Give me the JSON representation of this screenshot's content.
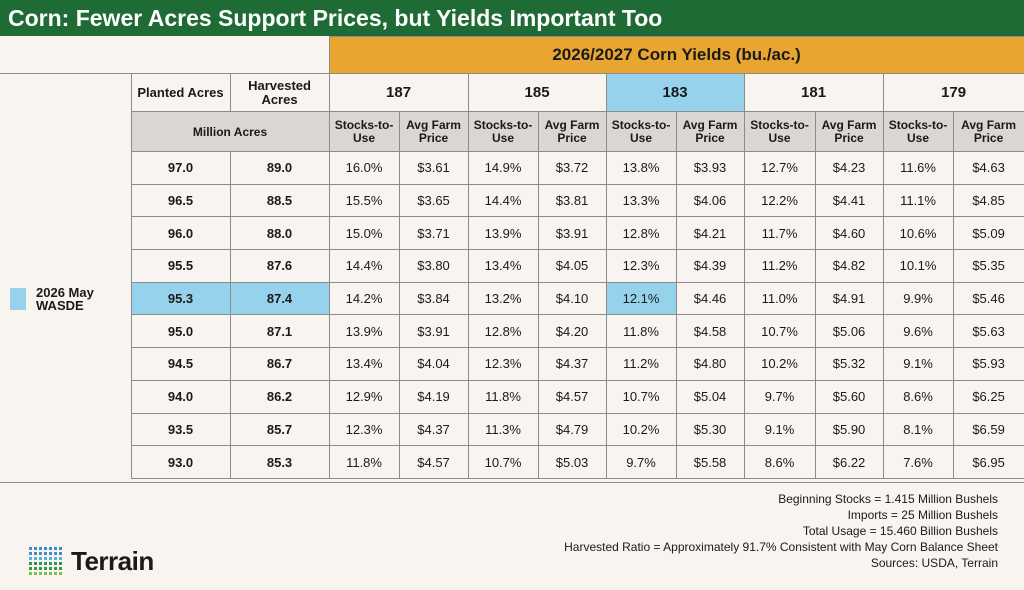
{
  "title": "Corn: Fewer Acres Support Prices, but Yields Important Too",
  "chart_data": {
    "type": "table",
    "title": "Corn: Fewer Acres Support Prices, but Yields Important Too",
    "yield_header": "2026/2027 Corn Yields (bu./ac.)",
    "yields": [
      "187",
      "185",
      "183",
      "181",
      "179"
    ],
    "highlight_yield": "183",
    "acre_headers": {
      "planted": "Planted Acres",
      "harvested": "Harvested Acres",
      "units": "Million Acres"
    },
    "sub_headers": {
      "stocks": "Stocks-to-Use",
      "price": "Avg Farm Price"
    },
    "wasde_label": "2026 May WASDE",
    "rows": [
      {
        "planted": "97.0",
        "harvested": "89.0",
        "values": [
          [
            "16.0%",
            "$3.61"
          ],
          [
            "14.9%",
            "$3.72"
          ],
          [
            "13.8%",
            "$3.93"
          ],
          [
            "12.7%",
            "$4.23"
          ],
          [
            "11.6%",
            "$4.63"
          ]
        ]
      },
      {
        "planted": "96.5",
        "harvested": "88.5",
        "values": [
          [
            "15.5%",
            "$3.65"
          ],
          [
            "14.4%",
            "$3.81"
          ],
          [
            "13.3%",
            "$4.06"
          ],
          [
            "12.2%",
            "$4.41"
          ],
          [
            "11.1%",
            "$4.85"
          ]
        ]
      },
      {
        "planted": "96.0",
        "harvested": "88.0",
        "values": [
          [
            "15.0%",
            "$3.71"
          ],
          [
            "13.9%",
            "$3.91"
          ],
          [
            "12.8%",
            "$4.21"
          ],
          [
            "11.7%",
            "$4.60"
          ],
          [
            "10.6%",
            "$5.09"
          ]
        ]
      },
      {
        "planted": "95.5",
        "harvested": "87.6",
        "values": [
          [
            "14.4%",
            "$3.80"
          ],
          [
            "13.4%",
            "$4.05"
          ],
          [
            "12.3%",
            "$4.39"
          ],
          [
            "11.2%",
            "$4.82"
          ],
          [
            "10.1%",
            "$5.35"
          ]
        ]
      },
      {
        "planted": "95.3",
        "harvested": "87.4",
        "values": [
          [
            "14.2%",
            "$3.84"
          ],
          [
            "13.2%",
            "$4.10"
          ],
          [
            "12.1%",
            "$4.46"
          ],
          [
            "11.0%",
            "$4.91"
          ],
          [
            "9.9%",
            "$5.46"
          ]
        ]
      },
      {
        "planted": "95.0",
        "harvested": "87.1",
        "values": [
          [
            "13.9%",
            "$3.91"
          ],
          [
            "12.8%",
            "$4.20"
          ],
          [
            "11.8%",
            "$4.58"
          ],
          [
            "10.7%",
            "$5.06"
          ],
          [
            "9.6%",
            "$5.63"
          ]
        ]
      },
      {
        "planted": "94.5",
        "harvested": "86.7",
        "values": [
          [
            "13.4%",
            "$4.04"
          ],
          [
            "12.3%",
            "$4.37"
          ],
          [
            "11.2%",
            "$4.80"
          ],
          [
            "10.2%",
            "$5.32"
          ],
          [
            "9.1%",
            "$5.93"
          ]
        ]
      },
      {
        "planted": "94.0",
        "harvested": "86.2",
        "values": [
          [
            "12.9%",
            "$4.19"
          ],
          [
            "11.8%",
            "$4.57"
          ],
          [
            "10.7%",
            "$5.04"
          ],
          [
            "9.7%",
            "$5.60"
          ],
          [
            "8.6%",
            "$6.25"
          ]
        ]
      },
      {
        "planted": "93.5",
        "harvested": "85.7",
        "values": [
          [
            "12.3%",
            "$4.37"
          ],
          [
            "11.3%",
            "$4.79"
          ],
          [
            "10.2%",
            "$5.30"
          ],
          [
            "9.1%",
            "$5.90"
          ],
          [
            "8.1%",
            "$6.59"
          ]
        ]
      },
      {
        "planted": "93.0",
        "harvested": "85.3",
        "values": [
          [
            "11.8%",
            "$4.57"
          ],
          [
            "10.7%",
            "$5.03"
          ],
          [
            "9.7%",
            "$5.58"
          ],
          [
            "8.6%",
            "$6.22"
          ],
          [
            "7.6%",
            "$6.95"
          ]
        ]
      }
    ],
    "highlight_row": 4,
    "highlight_col": 2
  },
  "notes": [
    "Beginning Stocks = 1.415 Million Bushels",
    "Imports = 25 Million Bushels",
    "Total Usage = 15.460 Billion Bushels",
    "Harvested Ratio = Approximately 91.7% Consistent with May Corn Balance Sheet",
    "Sources: USDA, Terrain"
  ],
  "logo_text": "Terrain",
  "colors": {
    "title_bg": "#1e6b35",
    "yield_header_bg": "#e8a631",
    "highlight": "#96d2ec",
    "subheader_bg": "#d9d6d3"
  }
}
